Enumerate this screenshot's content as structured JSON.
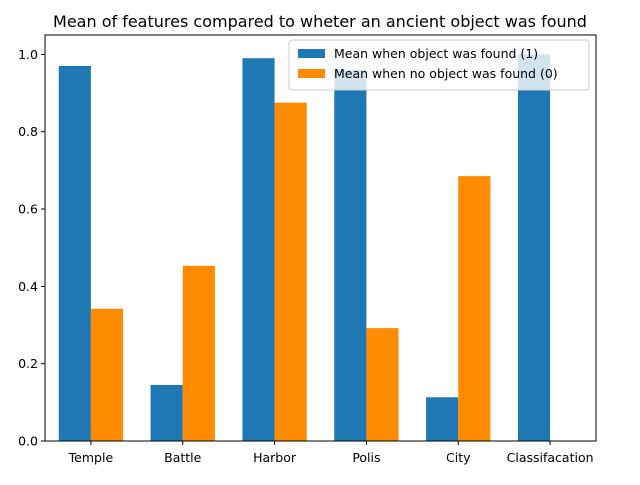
{
  "chart_data": {
    "type": "bar",
    "title": "Mean of features compared to wheter an ancient object was found",
    "xlabel": "",
    "ylabel": "",
    "categories": [
      "Temple",
      "Battle",
      "Harbor",
      "Polis",
      "City",
      "Classifacation"
    ],
    "series": [
      {
        "name": "Mean when object was found (1)",
        "color": "#1f77b4",
        "values": [
          0.97,
          0.145,
          0.99,
          0.96,
          0.113,
          1.0
        ]
      },
      {
        "name": "Mean when no object was found (0)",
        "color": "#ff8c00",
        "values": [
          0.342,
          0.453,
          0.875,
          0.292,
          0.685,
          0.0
        ]
      }
    ],
    "ylim": [
      0,
      1.05
    ],
    "yticks": [
      0.0,
      0.2,
      0.4,
      0.6,
      0.8,
      1.0
    ],
    "ytick_labels": [
      "0.0",
      "0.2",
      "0.4",
      "0.6",
      "0.8",
      "1.0"
    ],
    "grid": false,
    "legend_position": "top-right"
  }
}
